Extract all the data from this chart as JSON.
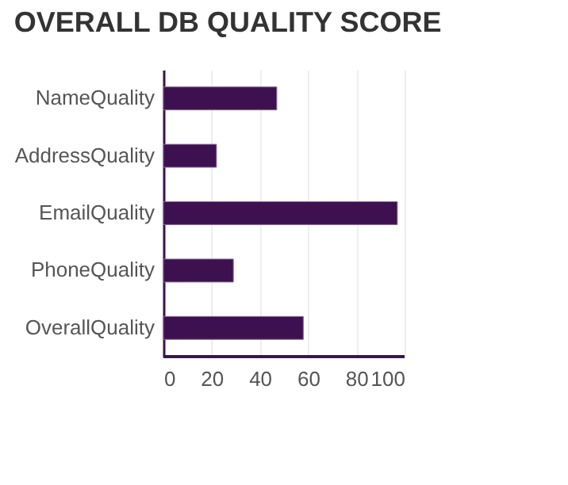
{
  "chart_data": {
    "type": "bar",
    "orientation": "horizontal",
    "title": "OVERALL DB QUALITY SCORE",
    "categories": [
      "NameQuality",
      "AddressQuality",
      "EmailQuality",
      "PhoneQuality",
      "OverallQuality"
    ],
    "values": [
      47,
      22,
      97,
      29,
      58
    ],
    "color": "#3d1150",
    "xlim": [
      0,
      100
    ],
    "xticks": [
      0,
      20,
      40,
      60,
      80,
      100
    ],
    "grid": "x"
  }
}
